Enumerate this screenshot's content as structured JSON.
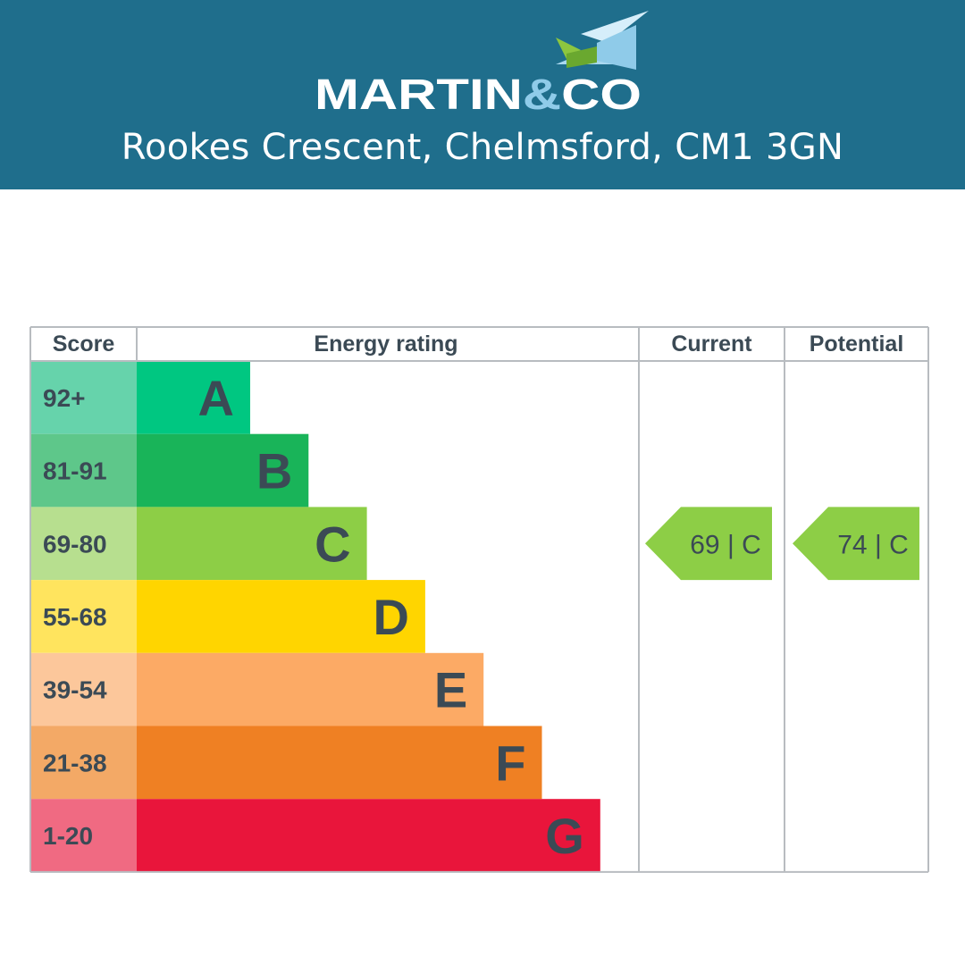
{
  "header": {
    "brand": "MARTIN&CO",
    "brand_part1": "MARTIN",
    "brand_amp": "&",
    "brand_part2": "CO",
    "address": "Rookes Crescent, Chelmsford, CM1 3GN",
    "background_color": "#1f6e8c",
    "logo_icon": "house-roof-icon"
  },
  "chart_data": {
    "type": "table",
    "columns": [
      "Score",
      "Energy rating",
      "Current",
      "Potential"
    ],
    "bands": [
      {
        "score": "92+",
        "letter": "A",
        "color": "#00c781",
        "score_color": "#66d3ab"
      },
      {
        "score": "81-91",
        "letter": "B",
        "color": "#19b459",
        "score_color": "#5ec78a"
      },
      {
        "score": "69-80",
        "letter": "C",
        "color": "#8dce46",
        "score_color": "#b7df8f"
      },
      {
        "score": "55-68",
        "letter": "D",
        "color": "#ffd500",
        "score_color": "#ffe45e"
      },
      {
        "score": "39-54",
        "letter": "E",
        "color": "#fcaa65",
        "score_color": "#fcc79b"
      },
      {
        "score": "21-38",
        "letter": "F",
        "color": "#ef8023",
        "score_color": "#f3a966"
      },
      {
        "score": "1-20",
        "letter": "G",
        "color": "#e9153b",
        "score_color": "#f06a82"
      }
    ],
    "current": {
      "value": 69,
      "band": "C",
      "label": "69 | C",
      "color": "#8dce46"
    },
    "potential": {
      "value": 74,
      "band": "C",
      "label": "74 | C",
      "color": "#8dce46"
    }
  }
}
